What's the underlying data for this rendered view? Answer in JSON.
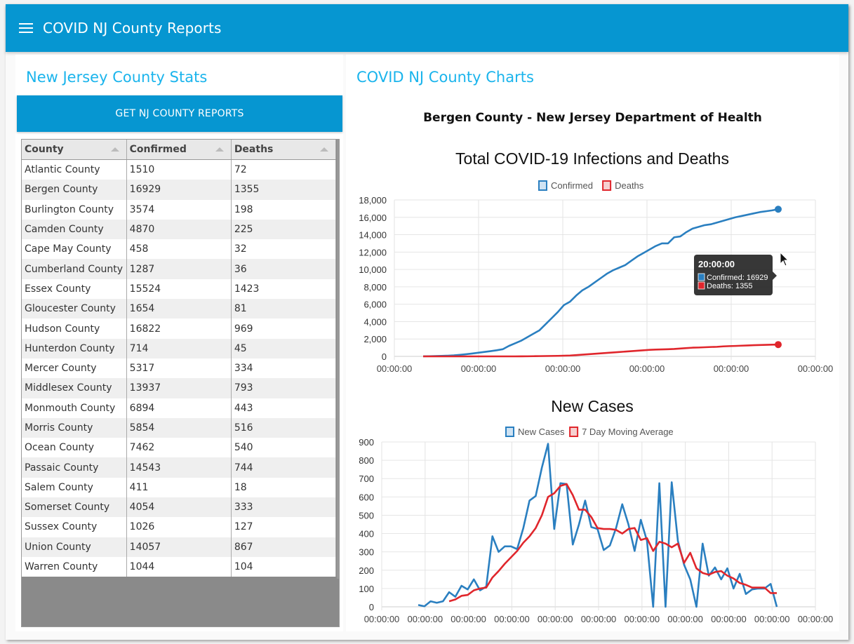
{
  "app": {
    "title": "COVID NJ County Reports",
    "menu_icon": "hamburger-menu-icon"
  },
  "left": {
    "title": "New Jersey County Stats",
    "button_label": "GET NJ COUNTY REPORTS",
    "table": {
      "columns": [
        "County",
        "Confirmed",
        "Deaths"
      ],
      "rows": [
        [
          "Atlantic County",
          "1510",
          "72"
        ],
        [
          "Bergen County",
          "16929",
          "1355"
        ],
        [
          "Burlington County",
          "3574",
          "198"
        ],
        [
          "Camden County",
          "4870",
          "225"
        ],
        [
          "Cape May County",
          "458",
          "32"
        ],
        [
          "Cumberland County",
          "1287",
          "36"
        ],
        [
          "Essex County",
          "15524",
          "1423"
        ],
        [
          "Gloucester County",
          "1654",
          "81"
        ],
        [
          "Hudson County",
          "16822",
          "969"
        ],
        [
          "Hunterdon County",
          "714",
          "45"
        ],
        [
          "Mercer County",
          "5317",
          "334"
        ],
        [
          "Middlesex County",
          "13937",
          "793"
        ],
        [
          "Monmouth County",
          "6894",
          "443"
        ],
        [
          "Morris County",
          "5854",
          "516"
        ],
        [
          "Ocean County",
          "7462",
          "540"
        ],
        [
          "Passaic County",
          "14543",
          "744"
        ],
        [
          "Salem County",
          "411",
          "18"
        ],
        [
          "Somerset County",
          "4054",
          "333"
        ],
        [
          "Sussex County",
          "1026",
          "127"
        ],
        [
          "Union County",
          "14057",
          "867"
        ],
        [
          "Warren County",
          "1044",
          "104"
        ]
      ]
    }
  },
  "right": {
    "title": "COVID NJ County Charts",
    "subtitle": "Bergen County - New Jersey Department of Health"
  },
  "colors": {
    "primary": "#0696d1",
    "heading": "#1ab4ec",
    "confirmed": "#2a7fc0",
    "deaths": "#e0262c"
  },
  "chart_data": [
    {
      "type": "line",
      "title": "Total COVID-19 Infections and Deaths",
      "legend": [
        "Confirmed",
        "Deaths"
      ],
      "legend_position": "top",
      "x_tick_labels": [
        "00:00:00",
        "00:00:00",
        "00:00:00",
        "00:00:00",
        "00:00:00",
        "00:00:00"
      ],
      "y_tick_labels": [
        "0",
        "2,000",
        "4,000",
        "6,000",
        "8,000",
        "10,000",
        "12,000",
        "14,000",
        "16,000",
        "18,000"
      ],
      "ylim": [
        0,
        18000
      ],
      "grid": true,
      "series": [
        {
          "name": "Confirmed",
          "values": [
            10,
            20,
            40,
            60,
            80,
            120,
            180,
            250,
            330,
            420,
            510,
            600,
            700,
            820,
            1200,
            1500,
            1800,
            2200,
            2600,
            3000,
            3700,
            4400,
            5100,
            5900,
            6300,
            7000,
            7600,
            8000,
            8500,
            9000,
            9500,
            9900,
            10200,
            10500,
            11000,
            11500,
            11900,
            12300,
            12700,
            13000,
            13000,
            13700,
            13800,
            14300,
            14700,
            14900,
            15100,
            15200,
            15400,
            15600,
            15800,
            16000,
            16150,
            16300,
            16450,
            16600,
            16700,
            16800,
            16929
          ]
        },
        {
          "name": "Deaths",
          "values": [
            0,
            0,
            0,
            0,
            0,
            0,
            0,
            0,
            0,
            0,
            0,
            0,
            0,
            0,
            0,
            0,
            5,
            10,
            20,
            30,
            40,
            50,
            60,
            80,
            100,
            150,
            200,
            250,
            300,
            350,
            400,
            450,
            500,
            550,
            600,
            650,
            700,
            750,
            780,
            800,
            820,
            850,
            900,
            950,
            1000,
            1020,
            1050,
            1080,
            1100,
            1150,
            1180,
            1200,
            1230,
            1260,
            1290,
            1310,
            1330,
            1345,
            1355
          ]
        }
      ],
      "tooltip": {
        "title": "20:00:00",
        "lines": [
          "Confirmed: 16929",
          "Deaths: 1355"
        ]
      }
    },
    {
      "type": "line",
      "title": "New Cases",
      "legend": [
        "New Cases",
        "7 Day Moving Average"
      ],
      "legend_position": "top",
      "x_tick_labels": [
        "00:00:00",
        "00:00:00",
        "00:00:00",
        "00:00:00",
        "00:00:00",
        "00:00:00",
        "00:00:00",
        "00:00:00",
        "00:00:00",
        "00:00:00",
        "00:00:00"
      ],
      "y_tick_labels": [
        "0",
        "100",
        "200",
        "300",
        "400",
        "500",
        "600",
        "700",
        "800",
        "900"
      ],
      "ylim": [
        0,
        900
      ],
      "grid": true,
      "series": [
        {
          "name": "New Cases",
          "values": [
            10,
            3,
            30,
            22,
            30,
            80,
            55,
            115,
            95,
            150,
            90,
            110,
            385,
            300,
            330,
            330,
            315,
            430,
            580,
            605,
            760,
            890,
            425,
            675,
            670,
            340,
            450,
            580,
            435,
            425,
            310,
            335,
            430,
            560,
            450,
            305,
            475,
            360,
            0,
            675,
            0,
            680,
            360,
            230,
            150,
            0,
            345,
            170,
            215,
            150,
            210,
            100,
            180,
            70,
            95,
            100,
            100,
            125,
            0
          ]
        },
        {
          "name": "7 Day Moving Average",
          "offset": 5,
          "values": [
            30,
            40,
            60,
            65,
            90,
            100,
            105,
            160,
            195,
            235,
            270,
            305,
            350,
            385,
            430,
            500,
            600,
            620,
            660,
            670,
            610,
            530,
            530,
            490,
            430,
            425,
            425,
            420,
            400,
            425,
            430,
            365,
            375,
            305,
            355,
            345,
            325,
            345,
            240,
            295,
            210,
            185,
            175,
            190,
            195,
            170,
            155,
            130,
            120,
            105,
            105,
            105,
            75,
            75
          ]
        }
      ]
    }
  ]
}
